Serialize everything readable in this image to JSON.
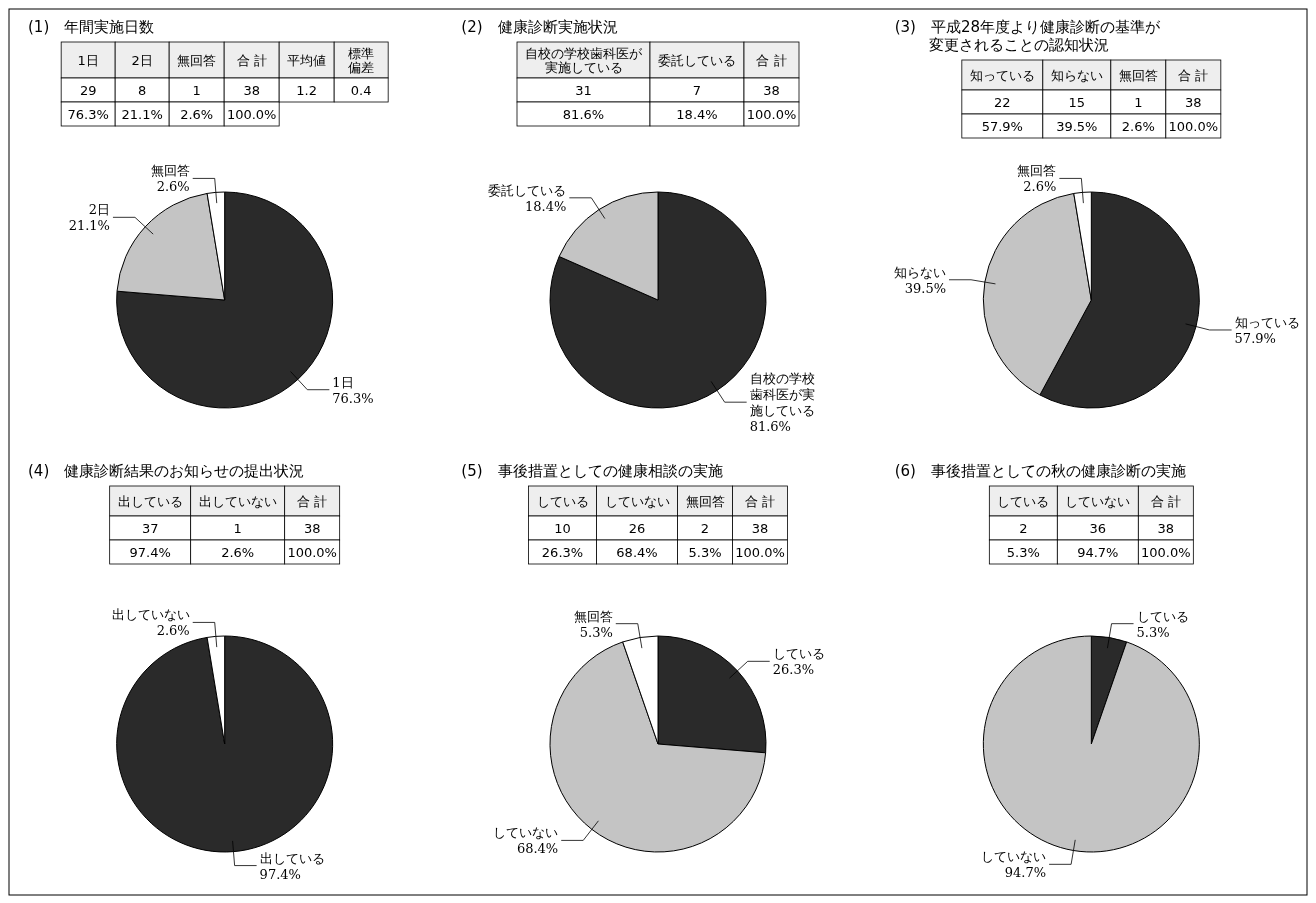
{
  "chart_data": [
    {
      "type": "pie",
      "title": "(1)　年間実施日数",
      "categories": [
        "1日",
        "2日",
        "無回答"
      ],
      "values": [
        76.3,
        21.1,
        2.6
      ],
      "value_labels": [
        "76.3%",
        "21.1%",
        "2.6%"
      ],
      "colors": [
        "#2a2a2a",
        "#c4c4c4",
        "#ffffff"
      ],
      "annotations": [
        "29",
        "8",
        "1",
        "合 計",
        "38",
        "100.0%",
        "平均値",
        "1.2",
        "標準偏差",
        "0.4"
      ]
    },
    {
      "type": "pie",
      "title": "(2)　健康診断実施状況",
      "categories": [
        "自校の学校歯科医が実施している",
        "委託している"
      ],
      "values": [
        81.6,
        18.4
      ],
      "value_labels": [
        "81.6%",
        "18.4%"
      ],
      "colors": [
        "#2a2a2a",
        "#c4c4c4"
      ],
      "annotations": [
        "31",
        "7",
        "合 計",
        "38",
        "100.0%"
      ]
    },
    {
      "type": "pie",
      "title": "(3)　平成28年度より健康診断の基準が変更されることの認知状況",
      "categories": [
        "知っている",
        "知らない",
        "無回答"
      ],
      "values": [
        57.9,
        39.5,
        2.6
      ],
      "value_labels": [
        "57.9%",
        "39.5%",
        "2.6%"
      ],
      "colors": [
        "#2a2a2a",
        "#c4c4c4",
        "#ffffff"
      ],
      "annotations": [
        "22",
        "15",
        "1",
        "合 計",
        "38",
        "100.0%"
      ]
    },
    {
      "type": "pie",
      "title": "(4)　健康診断結果のお知らせの提出状況",
      "categories": [
        "出している",
        "出していない"
      ],
      "values": [
        97.4,
        2.6
      ],
      "value_labels": [
        "97.4%",
        "2.6%"
      ],
      "colors": [
        "#2a2a2a",
        "#ffffff"
      ],
      "annotations": [
        "37",
        "1",
        "合 計",
        "38",
        "100.0%"
      ]
    },
    {
      "type": "pie",
      "title": "(5)　事後措置としての健康相談の実施",
      "categories": [
        "している",
        "していない",
        "無回答"
      ],
      "values": [
        26.3,
        68.4,
        5.3
      ],
      "value_labels": [
        "26.3%",
        "68.4%",
        "5.3%"
      ],
      "colors": [
        "#2a2a2a",
        "#c4c4c4",
        "#ffffff"
      ],
      "annotations": [
        "10",
        "26",
        "2",
        "合 計",
        "38",
        "100.0%"
      ]
    },
    {
      "type": "pie",
      "title": "(6)　事後措置としての秋の健康診断の実施",
      "categories": [
        "している",
        "していない"
      ],
      "values": [
        5.3,
        94.7
      ],
      "value_labels": [
        "5.3%",
        "94.7%"
      ],
      "colors": [
        "#2a2a2a",
        "#c4c4c4"
      ],
      "annotations": [
        "2",
        "36",
        "合 計",
        "38",
        "100.0%"
      ]
    }
  ]
}
